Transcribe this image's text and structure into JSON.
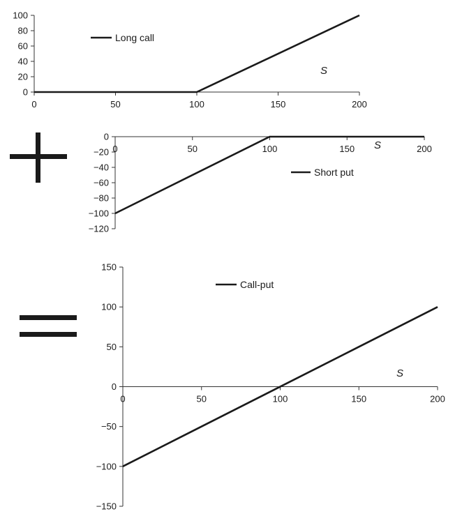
{
  "colors": {
    "line": "#1a1a1a",
    "axis": "#333333",
    "symbol": "#1a1a1a"
  },
  "operators": {
    "plus": "+",
    "equals": "="
  },
  "chart_data": [
    {
      "type": "line",
      "id": "long-call",
      "title": "",
      "x_axis_name": "S",
      "xlim": [
        0,
        200
      ],
      "ylim": [
        0,
        100
      ],
      "x_ticks": [
        0,
        50,
        100,
        150,
        200
      ],
      "y_ticks": [
        0,
        20,
        40,
        60,
        80,
        100
      ],
      "legend": "top-left",
      "grid": false,
      "series": [
        {
          "name": "Long call",
          "x": [
            0,
            100,
            200
          ],
          "y": [
            0,
            0,
            100
          ]
        }
      ]
    },
    {
      "type": "line",
      "id": "short-put",
      "title": "",
      "x_axis_name": "S",
      "xlim": [
        0,
        200
      ],
      "ylim": [
        -120,
        0
      ],
      "x_ticks": [
        0,
        50,
        100,
        150,
        200
      ],
      "y_ticks": [
        0,
        -20,
        -40,
        -60,
        -80,
        -100,
        -120
      ],
      "legend": "right",
      "grid": false,
      "series": [
        {
          "name": "Short put",
          "x": [
            0,
            100,
            200
          ],
          "y": [
            -100,
            0,
            0
          ]
        }
      ]
    },
    {
      "type": "line",
      "id": "call-put",
      "title": "",
      "x_axis_name": "S",
      "xlim": [
        0,
        200
      ],
      "ylim": [
        -150,
        150
      ],
      "x_ticks": [
        0,
        50,
        100,
        150,
        200
      ],
      "y_ticks": [
        150,
        100,
        50,
        0,
        -50,
        -100,
        -150
      ],
      "legend": "top-center",
      "grid": false,
      "series": [
        {
          "name": "Call-put",
          "x": [
            0,
            200
          ],
          "y": [
            -100,
            100
          ]
        }
      ]
    }
  ]
}
